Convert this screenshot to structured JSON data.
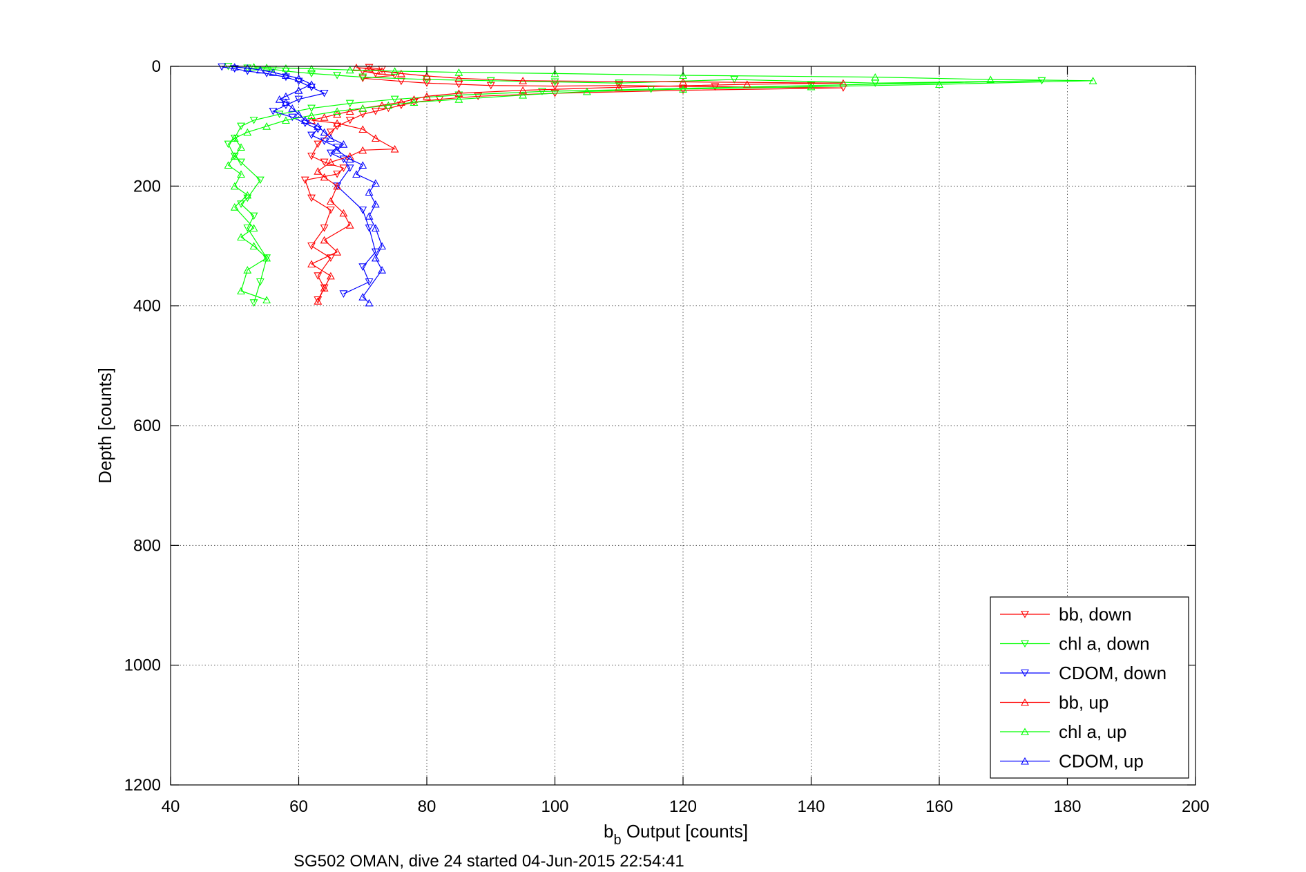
{
  "chart_data": {
    "type": "scatter",
    "xlabel_main": "b",
    "xlabel_sub": "b",
    "xlabel_rest": " Output [counts]",
    "ylabel": "Depth [counts]",
    "caption": "SG502 OMAN, dive 24 started 04-Jun-2015 22:54:41",
    "xlim": [
      40,
      200
    ],
    "ylim": [
      0,
      1200
    ],
    "y_reversed": true,
    "grid": true,
    "legend_position": "bottom-right",
    "x_ticks": [
      "40",
      "60",
      "80",
      "100",
      "120",
      "140",
      "160",
      "180",
      "200"
    ],
    "y_ticks": [
      "0",
      "200",
      "400",
      "600",
      "800",
      "1000",
      "1200"
    ],
    "colors": {
      "red": "#ff0000",
      "green": "#00ff00",
      "blue": "#0000ff"
    },
    "series": [
      {
        "name": "bb, down",
        "color": "#ff0000",
        "marker": "triangle-down",
        "x": [
          71,
          73,
          70,
          72,
          75,
          70,
          76,
          80,
          85,
          90,
          100,
          110,
          125,
          145,
          120,
          100,
          88,
          82,
          78,
          76,
          74,
          72,
          70,
          68,
          66,
          65,
          63,
          62,
          64,
          67,
          66,
          61,
          62,
          65,
          64,
          62,
          65,
          63,
          64,
          63
        ],
        "y": [
          2,
          5,
          8,
          12,
          15,
          20,
          25,
          28,
          30,
          32,
          33,
          32,
          34,
          36,
          40,
          45,
          50,
          55,
          60,
          65,
          70,
          75,
          80,
          90,
          100,
          110,
          130,
          150,
          160,
          170,
          180,
          190,
          220,
          240,
          270,
          300,
          320,
          350,
          370,
          390
        ]
      },
      {
        "name": "chl a, down",
        "color": "#00ff00",
        "marker": "triangle-down",
        "x": [
          49,
          52,
          56,
          58,
          62,
          66,
          70,
          80,
          90,
          100,
          110,
          128,
          150,
          176,
          140,
          115,
          98,
          85,
          75,
          68,
          62,
          57,
          53,
          51,
          50,
          49,
          50,
          51,
          54,
          52,
          51,
          53,
          52,
          55,
          54,
          53
        ],
        "y": [
          0,
          3,
          5,
          8,
          12,
          15,
          18,
          22,
          24,
          26,
          28,
          22,
          28,
          24,
          32,
          38,
          42,
          48,
          55,
          62,
          70,
          80,
          90,
          100,
          120,
          130,
          150,
          160,
          190,
          220,
          230,
          250,
          270,
          320,
          360,
          395
        ]
      },
      {
        "name": "CDOM, down",
        "color": "#0000ff",
        "marker": "triangle-down",
        "x": [
          48,
          50,
          52,
          55,
          58,
          60,
          62,
          64,
          60,
          58,
          56,
          59,
          61,
          63,
          62,
          64,
          66,
          65,
          67,
          68,
          66,
          70,
          71,
          72,
          70,
          71,
          67
        ],
        "y": [
          1,
          4,
          8,
          12,
          18,
          25,
          35,
          45,
          55,
          65,
          75,
          85,
          95,
          105,
          115,
          125,
          135,
          145,
          155,
          170,
          200,
          240,
          270,
          310,
          335,
          360,
          380
        ]
      },
      {
        "name": "bb, up",
        "color": "#ff0000",
        "marker": "triangle-up",
        "x": [
          63,
          64,
          65,
          62,
          66,
          64,
          68,
          67,
          65,
          66,
          64,
          63,
          65,
          68,
          70,
          75,
          72,
          70,
          66,
          62,
          64,
          66,
          68,
          70,
          73,
          76,
          78,
          80,
          85,
          95,
          110,
          130,
          145,
          120,
          95,
          85,
          80,
          76,
          73,
          71,
          69
        ],
        "y": [
          392,
          370,
          350,
          330,
          310,
          290,
          265,
          245,
          225,
          200,
          185,
          175,
          160,
          150,
          140,
          138,
          120,
          105,
          95,
          90,
          85,
          80,
          75,
          70,
          65,
          60,
          55,
          50,
          45,
          40,
          35,
          30,
          28,
          26,
          24,
          20,
          16,
          12,
          8,
          4,
          2
        ]
      },
      {
        "name": "chl a, up",
        "color": "#00ff00",
        "marker": "triangle-up",
        "x": [
          55,
          51,
          52,
          55,
          53,
          51,
          53,
          50,
          52,
          50,
          51,
          49,
          50,
          51,
          50,
          52,
          55,
          58,
          62,
          66,
          70,
          74,
          78,
          85,
          95,
          105,
          120,
          140,
          160,
          184,
          168,
          150,
          120,
          100,
          85,
          75,
          68,
          62,
          58,
          55,
          53
        ],
        "y": [
          390,
          375,
          340,
          320,
          300,
          285,
          270,
          235,
          215,
          200,
          180,
          165,
          150,
          135,
          120,
          110,
          100,
          90,
          82,
          75,
          70,
          65,
          60,
          55,
          48,
          42,
          38,
          34,
          30,
          24,
          22,
          18,
          15,
          12,
          10,
          8,
          6,
          4,
          3,
          2,
          1
        ]
      },
      {
        "name": "CDOM, up",
        "color": "#0000ff",
        "marker": "triangle-up",
        "x": [
          71,
          70,
          73,
          72,
          73,
          72,
          71,
          72,
          71,
          72,
          69,
          70,
          68,
          66,
          67,
          65,
          64,
          63,
          61,
          60,
          59,
          58,
          57,
          58,
          60,
          62,
          60,
          58,
          56,
          54,
          52,
          50
        ],
        "y": [
          395,
          385,
          340,
          320,
          300,
          270,
          250,
          230,
          210,
          195,
          180,
          165,
          155,
          140,
          130,
          120,
          110,
          100,
          90,
          80,
          70,
          60,
          55,
          50,
          40,
          30,
          20,
          15,
          10,
          6,
          3,
          1
        ]
      }
    ]
  }
}
